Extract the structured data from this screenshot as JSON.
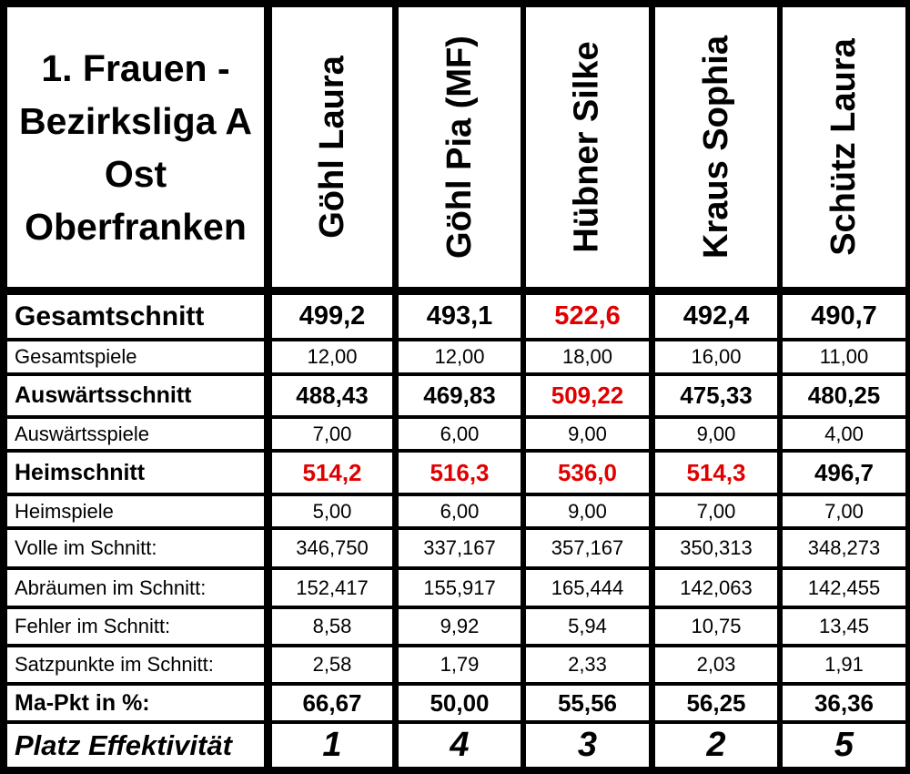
{
  "table": {
    "title_lines": [
      "1. Frauen -",
      "Bezirksliga A",
      "Ost",
      "Oberfranken"
    ],
    "players": [
      "Göhl Laura",
      "Göhl Pia (MF)",
      "Hübner Silke",
      "Kraus Sophia",
      "Schütz Laura"
    ],
    "highlight_color": "#e00000",
    "rows": [
      {
        "label": "Gesamtschnitt",
        "style": "big",
        "values": [
          "499,2",
          "493,1",
          "522,6",
          "492,4",
          "490,7"
        ],
        "highlight": [
          false,
          false,
          true,
          false,
          false
        ]
      },
      {
        "label": "Gesamtspiele",
        "style": "small",
        "values": [
          "12,00",
          "12,00",
          "18,00",
          "16,00",
          "11,00"
        ],
        "highlight": [
          false,
          false,
          false,
          false,
          false
        ]
      },
      {
        "label": "Auswärtsschnitt",
        "style": "mid",
        "values": [
          "488,43",
          "469,83",
          "509,22",
          "475,33",
          "480,25"
        ],
        "highlight": [
          false,
          false,
          true,
          false,
          false
        ]
      },
      {
        "label": "Auswärtsspiele",
        "style": "small",
        "values": [
          "7,00",
          "6,00",
          "9,00",
          "9,00",
          "4,00"
        ],
        "highlight": [
          false,
          false,
          false,
          false,
          false
        ]
      },
      {
        "label": "Heimschnitt",
        "style": "mid",
        "values": [
          "514,2",
          "516,3",
          "536,0",
          "514,3",
          "496,7"
        ],
        "highlight": [
          true,
          true,
          true,
          true,
          false
        ]
      },
      {
        "label": "Heimspiele",
        "style": "small",
        "values": [
          "5,00",
          "6,00",
          "9,00",
          "7,00",
          "7,00"
        ],
        "highlight": [
          false,
          false,
          false,
          false,
          false
        ]
      },
      {
        "label": "Volle im Schnitt:",
        "style": "small",
        "values": [
          "346,750",
          "337,167",
          "357,167",
          "350,313",
          "348,273"
        ],
        "highlight": [
          false,
          false,
          false,
          false,
          false
        ]
      },
      {
        "label": "Abräumen im Schnitt:",
        "style": "small",
        "values": [
          "152,417",
          "155,917",
          "165,444",
          "142,063",
          "142,455"
        ],
        "highlight": [
          false,
          false,
          false,
          false,
          false
        ]
      },
      {
        "label": "Fehler im Schnitt:",
        "style": "small",
        "values": [
          "8,58",
          "9,92",
          "5,94",
          "10,75",
          "13,45"
        ],
        "highlight": [
          false,
          false,
          false,
          false,
          false
        ]
      },
      {
        "label": "Satzpunkte im Schnitt:",
        "style": "small",
        "values": [
          "2,58",
          "1,79",
          "2,33",
          "2,03",
          "1,91"
        ],
        "highlight": [
          false,
          false,
          false,
          false,
          false
        ]
      },
      {
        "label": "Ma-Pkt in %:",
        "style": "mid",
        "values": [
          "66,67",
          "50,00",
          "55,56",
          "56,25",
          "36,36"
        ],
        "highlight": [
          false,
          false,
          false,
          false,
          false
        ]
      },
      {
        "label": "Platz Effektivität",
        "style": "last",
        "values": [
          "1",
          "4",
          "3",
          "2",
          "5"
        ],
        "highlight": [
          false,
          false,
          false,
          false,
          false
        ]
      }
    ]
  }
}
